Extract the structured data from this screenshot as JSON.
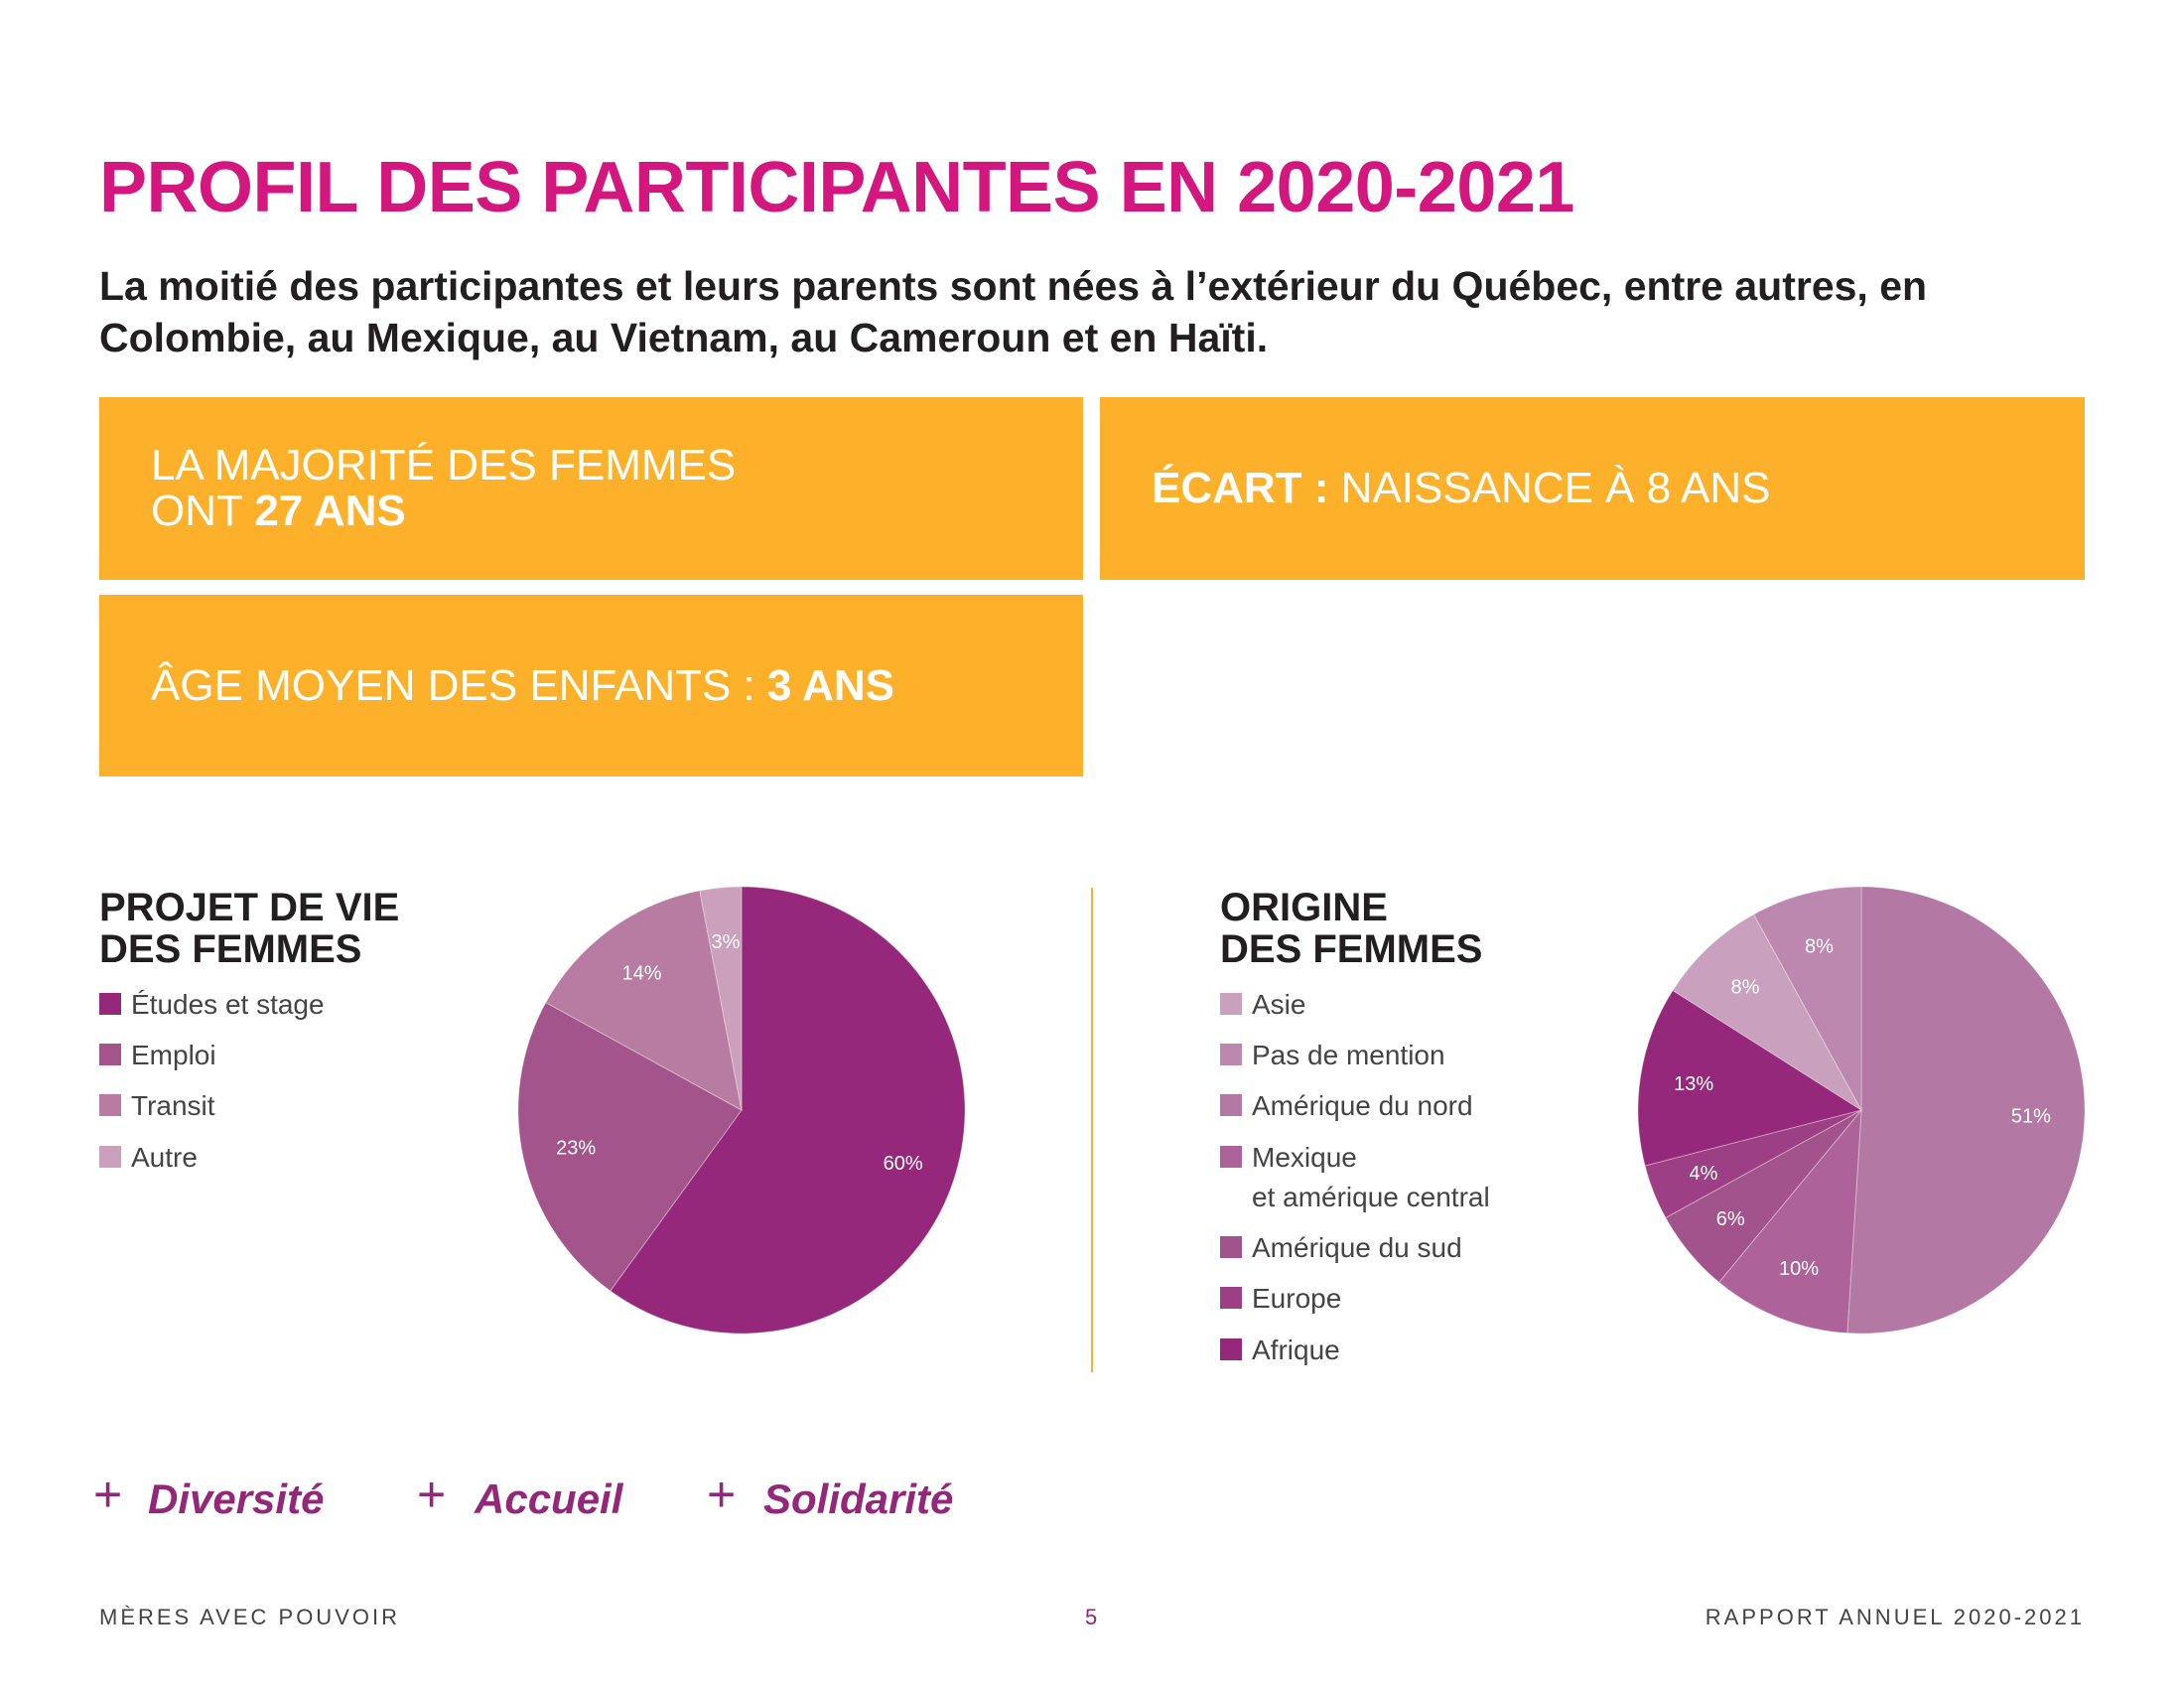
{
  "title": "PROFIL DES PARTICIPANTES EN 2020-2021",
  "subtitle": "La moitié des participantes et leurs parents sont nées à l’extérieur du Québec, entre autres, en Colombie, au Mexique, au Vietnam, au Cameroun et en Haïti.",
  "stats": {
    "box1_line1": "LA MAJORITÉ DES FEMMES",
    "box1_prefix": "ONT ",
    "box1_value": "27 ANS",
    "box2_label": "ÉCART :",
    "box2_value": " NAISSANCE À 8 ANS",
    "box3_label": "ÂGE MOYEN DES ENFANTS : ",
    "box3_value": "3 ANS"
  },
  "chart_data": [
    {
      "type": "pie",
      "title": "PROJET DE VIE DES FEMMES",
      "title_line1": "PROJET DE VIE",
      "title_line2": "DES FEMMES",
      "legend_placement": "left",
      "slices": [
        {
          "label": "Études et stage",
          "value": 60,
          "display": "60%",
          "color": "#95287a"
        },
        {
          "label": "Emploi",
          "value": 23,
          "display": "23%",
          "color": "#a2548b"
        },
        {
          "label": "Transit",
          "value": 14,
          "display": "14%",
          "color": "#b87ba2"
        },
        {
          "label": "Autre",
          "value": 3,
          "display": "3%",
          "color": "#caa0bd"
        }
      ]
    },
    {
      "type": "pie",
      "title": "ORIGINE DES FEMMES",
      "title_line1": "ORIGINE",
      "title_line2": "DES FEMMES",
      "legend_placement": "left",
      "slices": [
        {
          "label": "Amérique du nord",
          "value": 51,
          "display": "51%",
          "color": "#b478a5"
        },
        {
          "label": "Mexique et amérique central",
          "label_line1": "Mexique",
          "label_line2": "et amérique central",
          "value": 10,
          "display": "10%",
          "color": "#ad6399"
        },
        {
          "label": "Amérique du sud",
          "value": 6,
          "display": "6%",
          "color": "#a2538b"
        },
        {
          "label": "Europe",
          "value": 4,
          "display": "4%",
          "color": "#9c3f84"
        },
        {
          "label": "Afrique",
          "value": 13,
          "display": "13%",
          "color": "#95287a"
        },
        {
          "label": "Asie",
          "value": 8,
          "display": "8%",
          "color": "#c9a0bd"
        },
        {
          "label": "Pas de mention",
          "value": 8,
          "display": "8%",
          "color": "#bd88b0"
        }
      ],
      "legend_order": [
        5,
        6,
        0,
        1,
        2,
        3,
        4
      ]
    }
  ],
  "tags": [
    "Diversité",
    "Accueil",
    "Solidarité"
  ],
  "footer": {
    "left": "MÈRES AVEC POUVOIR",
    "page": "5",
    "right": "RAPPORT ANNUEL 2020-2021"
  },
  "colors": {
    "title": "#d3177f",
    "accent": "#fdb12b",
    "brand_purple": "#93277a"
  }
}
